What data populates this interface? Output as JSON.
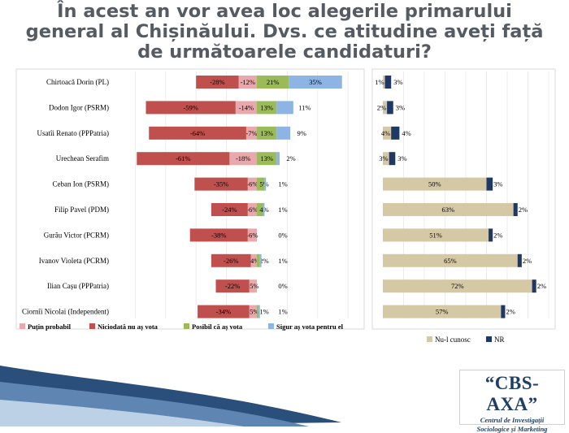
{
  "title": "În acest an vor avea loc alegerile primarului general al Chișinăului. Dvs. ce atitudine aveți față de următoarele candidaturi?",
  "colors": {
    "putin_probabil": "#e9a9ac",
    "niciodata": "#c0504d",
    "posibil": "#9bbb59",
    "sigur": "#8eb4e3",
    "nu_l_cunosc": "#d5c8a5",
    "nr": "#1f3864",
    "title": "#555b63",
    "logo": "#1f3f66"
  },
  "chart_data": [
    {
      "type": "bar",
      "stacked": "diverging",
      "orientation": "horizontal",
      "categories": [
        "Chirtoacă Dorin (PL)",
        "Dodon Igor (PSRM)",
        "Usatîi Renato (PPPatria)",
        "Urechean Serafim",
        "Ceban Ion (PSRM)",
        "Filip Pavel (PDM)",
        "Gurău Victor (PCRM)",
        "Ivanov Violeta (PCRM)",
        "Ilian Cașu (PPPatria)",
        "Ciornîi Nicolai (Independent)"
      ],
      "series": [
        {
          "name": "Puțin probabil",
          "values": [
            -12,
            -14,
            -7,
            -18,
            -6,
            -6,
            -6,
            -4,
            -5,
            -5
          ],
          "labels": [
            "-12%",
            "-14%",
            "-7%",
            "-18%",
            "-6%",
            "-6%",
            "-6%",
            "-4%",
            "-5%",
            "-5%"
          ]
        },
        {
          "name": "Niciodată nu aș vota",
          "values": [
            -28,
            -59,
            -64,
            -61,
            -35,
            -24,
            -38,
            -26,
            -22,
            -34
          ],
          "labels": [
            "-28%",
            "-59%",
            "-64%",
            "-61%",
            "-35%",
            "-24%",
            "-38%",
            "-26%",
            "-22%",
            "-34%"
          ]
        },
        {
          "name": "Posibil că aș vota",
          "values": [
            21,
            13,
            13,
            13,
            5,
            4,
            0,
            2,
            0,
            1
          ],
          "labels": [
            "21%",
            "13%",
            "13%",
            "13%",
            "5%",
            "4%",
            "",
            "2%",
            "",
            "1%"
          ]
        },
        {
          "name": "Sigur aș vota pentru el",
          "values": [
            35,
            11,
            9,
            2,
            1,
            1,
            0,
            1,
            0,
            1
          ],
          "labels": [
            "35%",
            "11%",
            "9%",
            "2%",
            "1%",
            "1%",
            "0%",
            "1%",
            "0%",
            "1%"
          ]
        }
      ]
    },
    {
      "type": "bar",
      "stacked": true,
      "orientation": "horizontal",
      "categories": [
        "Chirtoacă Dorin (PL)",
        "Dodon Igor (PSRM)",
        "Usatîi Renato (PPPatria)",
        "Urechean Serafim",
        "Ceban Ion (PSRM)",
        "Filip Pavel (PDM)",
        "Gurău Victor (PCRM)",
        "Ivanov Violeta (PCRM)",
        "Ilian Cașu (PPPatria)",
        "Ciornîi Nicolai (Independent)"
      ],
      "series": [
        {
          "name": "Nu-l cunosc",
          "values": [
            1,
            2,
            4,
            3,
            50,
            63,
            51,
            65,
            72,
            57
          ],
          "labels": [
            "1%",
            "2%",
            "4%",
            "3%",
            "50%",
            "63%",
            "51%",
            "65%",
            "72%",
            "57%"
          ]
        },
        {
          "name": "NR",
          "values": [
            3,
            3,
            4,
            3,
            3,
            2,
            2,
            2,
            2,
            2
          ],
          "labels": [
            "3%",
            "3%",
            "4%",
            "3%",
            "3%",
            "2%",
            "2%",
            "2%",
            "2%",
            "2%"
          ]
        }
      ]
    }
  ],
  "logo": {
    "brand": "“CBS-AXA”",
    "line1": "Centrul de Investigații",
    "line2": "Sociologice și Marketing"
  }
}
